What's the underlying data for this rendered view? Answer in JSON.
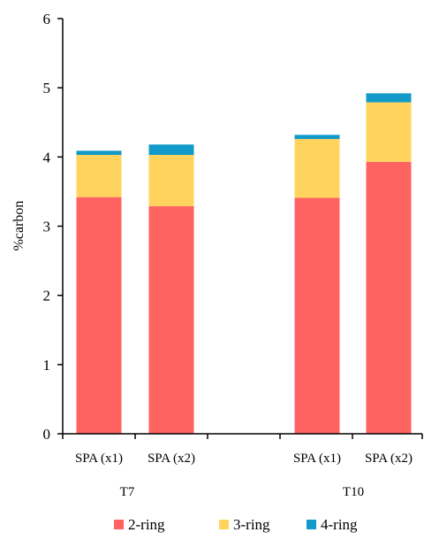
{
  "chart_data": {
    "type": "bar",
    "stacked": true,
    "ylabel": "%carbon",
    "xlabel": "",
    "title": "",
    "ylim": [
      0,
      6
    ],
    "yticks": [
      0,
      1,
      2,
      3,
      4,
      5,
      6
    ],
    "categories": [
      "SPA (x1)",
      "SPA (x2)",
      "SPA (x1)",
      "SPA (x2)"
    ],
    "groups": [
      {
        "label": "T7",
        "category_indices": [
          0,
          1
        ]
      },
      {
        "label": "T10",
        "category_indices": [
          2,
          3
        ]
      }
    ],
    "series": [
      {
        "name": "2-ring",
        "color": "#ff6361",
        "values": [
          3.42,
          3.29,
          3.41,
          3.93
        ]
      },
      {
        "name": "3-ring",
        "color": "#ffd35e",
        "values": [
          0.61,
          0.74,
          0.85,
          0.86
        ]
      },
      {
        "name": "4-ring",
        "color": "#129bc9",
        "values": [
          0.06,
          0.15,
          0.06,
          0.13
        ]
      }
    ],
    "legend_position": "bottom",
    "grid": false
  }
}
